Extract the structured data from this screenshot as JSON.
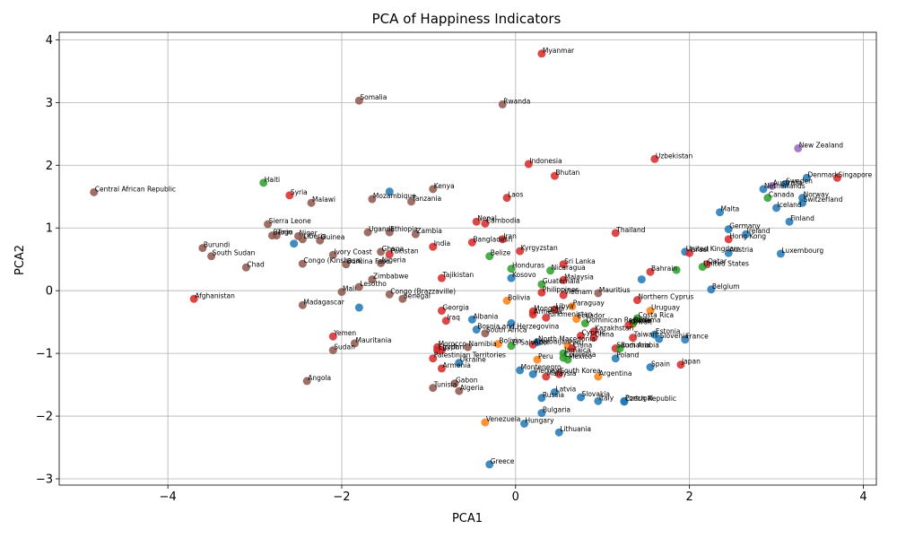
{
  "chart_data": {
    "type": "scatter",
    "title": "PCA of Happiness Indicators",
    "xlabel": "PCA1",
    "ylabel": "PCA2",
    "xlim": [
      -5.25,
      4.15
    ],
    "ylim": [
      -3.1,
      4.12
    ],
    "xticks": [
      -4,
      -2,
      0,
      2,
      4
    ],
    "yticks": [
      -3,
      -2,
      -1,
      0,
      1,
      2,
      3,
      4
    ],
    "grid": true,
    "colors": {
      "blue": "#1f77b4",
      "orange": "#ff7f0e",
      "green": "#2ca02c",
      "red": "#d62728",
      "purple": "#9467bd",
      "brown": "#8c564b"
    },
    "points": [
      {
        "x": 0.3,
        "y": 3.78,
        "label": "Myanmar",
        "c": "red"
      },
      {
        "x": -1.8,
        "y": 3.03,
        "label": "Somalia",
        "c": "brown"
      },
      {
        "x": -0.15,
        "y": 2.97,
        "label": "Rwanda",
        "c": "brown"
      },
      {
        "x": 3.25,
        "y": 2.27,
        "label": "New Zealand",
        "c": "purple"
      },
      {
        "x": 1.6,
        "y": 2.1,
        "label": "Uzbekistan",
        "c": "red"
      },
      {
        "x": 0.15,
        "y": 2.02,
        "label": "Indonesia",
        "c": "red"
      },
      {
        "x": 0.45,
        "y": 1.83,
        "label": "Bhutan",
        "c": "red"
      },
      {
        "x": 3.7,
        "y": 1.8,
        "label": "Singapore",
        "c": "red"
      },
      {
        "x": 3.35,
        "y": 1.8,
        "label": "Denmark",
        "c": "blue"
      },
      {
        "x": 3.1,
        "y": 1.7,
        "label": "Sweden",
        "c": "blue"
      },
      {
        "x": 2.95,
        "y": 1.67,
        "label": "Australia",
        "c": "purple"
      },
      {
        "x": 2.85,
        "y": 1.62,
        "label": "Netherlands",
        "c": "blue"
      },
      {
        "x": 2.9,
        "y": 1.48,
        "label": "Canada",
        "c": "green"
      },
      {
        "x": 3.3,
        "y": 1.48,
        "label": "Norway",
        "c": "blue"
      },
      {
        "x": 3.3,
        "y": 1.4,
        "label": "Switzerland",
        "c": "blue"
      },
      {
        "x": 3.0,
        "y": 1.32,
        "label": "Iceland",
        "c": "blue"
      },
      {
        "x": 3.15,
        "y": 1.1,
        "label": "Finland",
        "c": "blue"
      },
      {
        "x": 2.35,
        "y": 1.25,
        "label": "Malta",
        "c": "blue"
      },
      {
        "x": 2.45,
        "y": 0.98,
        "label": "Germany",
        "c": "blue"
      },
      {
        "x": 2.65,
        "y": 0.9,
        "label": "Ireland",
        "c": "blue"
      },
      {
        "x": 2.45,
        "y": 0.82,
        "label": "Hong Kong",
        "c": "red"
      },
      {
        "x": 1.95,
        "y": 0.62,
        "label": "United Kingdom",
        "c": "blue"
      },
      {
        "x": 2.0,
        "y": 0.6,
        "label": "Israel",
        "c": "red"
      },
      {
        "x": 2.45,
        "y": 0.6,
        "label": "Austria",
        "c": "blue"
      },
      {
        "x": 3.05,
        "y": 0.59,
        "label": "Luxembourg",
        "c": "blue"
      },
      {
        "x": 2.2,
        "y": 0.42,
        "label": "Qatar",
        "c": "red"
      },
      {
        "x": 2.15,
        "y": 0.38,
        "label": "United States",
        "c": "green"
      },
      {
        "x": 1.85,
        "y": 0.33,
        "label": "",
        "c": "green"
      },
      {
        "x": 1.55,
        "y": 0.3,
        "label": "Bahrain",
        "c": "red"
      },
      {
        "x": 2.25,
        "y": 0.02,
        "label": "Belgium",
        "c": "blue"
      },
      {
        "x": 1.45,
        "y": 0.18,
        "label": "",
        "c": "blue"
      },
      {
        "x": -4.85,
        "y": 1.57,
        "label": "Central African Republic",
        "c": "brown"
      },
      {
        "x": -2.9,
        "y": 1.72,
        "label": "Haiti",
        "c": "green"
      },
      {
        "x": -2.6,
        "y": 1.52,
        "label": "Syria",
        "c": "red"
      },
      {
        "x": -2.35,
        "y": 1.4,
        "label": "Malawi",
        "c": "brown"
      },
      {
        "x": -1.65,
        "y": 1.46,
        "label": "Mozambique",
        "c": "brown"
      },
      {
        "x": -1.45,
        "y": 1.58,
        "label": "",
        "c": "blue"
      },
      {
        "x": -1.2,
        "y": 1.42,
        "label": "Tanzania",
        "c": "brown"
      },
      {
        "x": -0.95,
        "y": 1.62,
        "label": "Kenya",
        "c": "brown"
      },
      {
        "x": -0.1,
        "y": 1.48,
        "label": "Laos",
        "c": "red"
      },
      {
        "x": -0.45,
        "y": 1.1,
        "label": "Nepal",
        "c": "red"
      },
      {
        "x": -0.35,
        "y": 1.07,
        "label": "Cambodia",
        "c": "red"
      },
      {
        "x": 1.15,
        "y": 0.92,
        "label": "Thailand",
        "c": "red"
      },
      {
        "x": -2.85,
        "y": 1.06,
        "label": "Sierra Leone",
        "c": "brown"
      },
      {
        "x": -2.8,
        "y": 0.88,
        "label": "Benin",
        "c": "brown"
      },
      {
        "x": -2.75,
        "y": 0.88,
        "label": "Togo",
        "c": "brown"
      },
      {
        "x": -2.5,
        "y": 0.87,
        "label": "Niger",
        "c": "brown"
      },
      {
        "x": -2.45,
        "y": 0.82,
        "label": "Liberia",
        "c": "brown"
      },
      {
        "x": -2.25,
        "y": 0.8,
        "label": "Guinea",
        "c": "brown"
      },
      {
        "x": -2.55,
        "y": 0.75,
        "label": "",
        "c": "blue"
      },
      {
        "x": -1.7,
        "y": 0.93,
        "label": "Uganda",
        "c": "brown"
      },
      {
        "x": -1.45,
        "y": 0.93,
        "label": "Ethiopia",
        "c": "brown"
      },
      {
        "x": -1.15,
        "y": 0.9,
        "label": "Zambia",
        "c": "brown"
      },
      {
        "x": -0.5,
        "y": 0.77,
        "label": "Bangladesh",
        "c": "red"
      },
      {
        "x": -0.15,
        "y": 0.82,
        "label": "Iran",
        "c": "red"
      },
      {
        "x": 0.05,
        "y": 0.63,
        "label": "Kyrgyzstan",
        "c": "red"
      },
      {
        "x": -0.95,
        "y": 0.7,
        "label": "India",
        "c": "red"
      },
      {
        "x": -3.6,
        "y": 0.68,
        "label": "Burundi",
        "c": "brown"
      },
      {
        "x": -3.5,
        "y": 0.55,
        "label": "South Sudan",
        "c": "brown"
      },
      {
        "x": -2.1,
        "y": 0.57,
        "label": "Ivory Coast",
        "c": "brown"
      },
      {
        "x": -1.55,
        "y": 0.62,
        "label": "Ghana",
        "c": "brown"
      },
      {
        "x": -1.45,
        "y": 0.58,
        "label": "Pakistan",
        "c": "red"
      },
      {
        "x": -2.45,
        "y": 0.43,
        "label": "Congo (Kinshasa)",
        "c": "brown"
      },
      {
        "x": -1.95,
        "y": 0.42,
        "label": "Burkina Faso",
        "c": "brown"
      },
      {
        "x": -1.55,
        "y": 0.44,
        "label": "Nigeria",
        "c": "brown"
      },
      {
        "x": -0.3,
        "y": 0.55,
        "label": "Belize",
        "c": "green"
      },
      {
        "x": -3.1,
        "y": 0.37,
        "label": "Chad",
        "c": "brown"
      },
      {
        "x": -0.05,
        "y": 0.35,
        "label": "Honduras",
        "c": "green"
      },
      {
        "x": 0.4,
        "y": 0.32,
        "label": "Nicaragua",
        "c": "green"
      },
      {
        "x": 0.55,
        "y": 0.42,
        "label": "Sri Lanka",
        "c": "red"
      },
      {
        "x": -0.85,
        "y": 0.2,
        "label": "Tajikistan",
        "c": "red"
      },
      {
        "x": -0.05,
        "y": 0.2,
        "label": "Kosovo",
        "c": "blue"
      },
      {
        "x": 0.55,
        "y": 0.17,
        "label": "Malaysia",
        "c": "red"
      },
      {
        "x": 0.3,
        "y": 0.1,
        "label": "Guatemala",
        "c": "green"
      },
      {
        "x": -1.65,
        "y": 0.18,
        "label": "Zimbabwe",
        "c": "brown"
      },
      {
        "x": -1.8,
        "y": 0.06,
        "label": "Lesotho",
        "c": "brown"
      },
      {
        "x": -2.0,
        "y": -0.02,
        "label": "Mali",
        "c": "brown"
      },
      {
        "x": -1.45,
        "y": -0.06,
        "label": "Congo (Brazzaville)",
        "c": "brown"
      },
      {
        "x": -1.3,
        "y": -0.13,
        "label": "Senegal",
        "c": "brown"
      },
      {
        "x": 0.3,
        "y": -0.03,
        "label": "Philippines",
        "c": "red"
      },
      {
        "x": 0.55,
        "y": -0.07,
        "label": "Vietnam",
        "c": "red"
      },
      {
        "x": 0.95,
        "y": -0.04,
        "label": "Mauritius",
        "c": "brown"
      },
      {
        "x": 1.4,
        "y": -0.15,
        "label": "Northern Cyprus",
        "c": "red"
      },
      {
        "x": -3.7,
        "y": -0.13,
        "label": "Afghanistan",
        "c": "red"
      },
      {
        "x": -2.45,
        "y": -0.23,
        "label": "Madagascar",
        "c": "brown"
      },
      {
        "x": -1.8,
        "y": -0.27,
        "label": "",
        "c": "blue"
      },
      {
        "x": -0.1,
        "y": -0.16,
        "label": "Bolivia",
        "c": "orange"
      },
      {
        "x": 0.65,
        "y": -0.25,
        "label": "Paraguay",
        "c": "orange"
      },
      {
        "x": 0.45,
        "y": -0.3,
        "label": "Libya",
        "c": "red"
      },
      {
        "x": -0.85,
        "y": -0.32,
        "label": "Georgia",
        "c": "red"
      },
      {
        "x": 0.2,
        "y": -0.33,
        "label": "Mongolia",
        "c": "red"
      },
      {
        "x": 0.2,
        "y": -0.38,
        "label": "Armenia",
        "c": "red"
      },
      {
        "x": 0.35,
        "y": -0.43,
        "label": "Turkmenistan",
        "c": "red"
      },
      {
        "x": 0.7,
        "y": -0.45,
        "label": "Ecuador",
        "c": "orange"
      },
      {
        "x": 1.55,
        "y": -0.32,
        "label": "Uruguay",
        "c": "orange"
      },
      {
        "x": 1.4,
        "y": -0.44,
        "label": "Costa Rica",
        "c": "green"
      },
      {
        "x": 1.35,
        "y": -0.53,
        "label": "Chile",
        "c": "orange"
      },
      {
        "x": -0.8,
        "y": -0.48,
        "label": "Iraq",
        "c": "red"
      },
      {
        "x": -0.5,
        "y": -0.46,
        "label": "Albania",
        "c": "blue"
      },
      {
        "x": 0.8,
        "y": -0.52,
        "label": "Dominican Republic",
        "c": "green"
      },
      {
        "x": 1.35,
        "y": -0.52,
        "label": "Panama",
        "c": "green"
      },
      {
        "x": 1.3,
        "y": -0.55,
        "label": "Kuwait",
        "c": "red"
      },
      {
        "x": -0.45,
        "y": -0.62,
        "label": "Bosnia and Herzegovina",
        "c": "blue"
      },
      {
        "x": -0.05,
        "y": -0.52,
        "label": "",
        "c": "blue"
      },
      {
        "x": -0.35,
        "y": -0.68,
        "label": "South Africa",
        "c": "brown"
      },
      {
        "x": 0.9,
        "y": -0.65,
        "label": "Kazakhstan",
        "c": "red"
      },
      {
        "x": 0.75,
        "y": -0.72,
        "label": "Cyprus",
        "c": "red"
      },
      {
        "x": 0.9,
        "y": -0.75,
        "label": "China",
        "c": "red"
      },
      {
        "x": 1.6,
        "y": -0.7,
        "label": "Estonia",
        "c": "blue"
      },
      {
        "x": 1.35,
        "y": -0.75,
        "label": "Taiwan",
        "c": "red"
      },
      {
        "x": 1.65,
        "y": -0.77,
        "label": "Slovenia",
        "c": "blue"
      },
      {
        "x": 1.95,
        "y": -0.78,
        "label": "France",
        "c": "blue"
      },
      {
        "x": -2.1,
        "y": -0.73,
        "label": "Yemen",
        "c": "red"
      },
      {
        "x": -1.85,
        "y": -0.84,
        "label": "Mauritania",
        "c": "brown"
      },
      {
        "x": -2.1,
        "y": -0.95,
        "label": "Sudan",
        "c": "brown"
      },
      {
        "x": -0.9,
        "y": -0.9,
        "label": "Morocco",
        "c": "red"
      },
      {
        "x": -0.85,
        "y": -0.95,
        "label": "Jordan",
        "c": "red"
      },
      {
        "x": -0.9,
        "y": -0.95,
        "label": "Egypt",
        "c": "red"
      },
      {
        "x": -0.55,
        "y": -0.9,
        "label": "Namibia",
        "c": "brown"
      },
      {
        "x": -0.2,
        "y": -0.85,
        "label": "Bolivia",
        "c": "orange"
      },
      {
        "x": -0.05,
        "y": -0.88,
        "label": "El Salvador",
        "c": "green"
      },
      {
        "x": 0.2,
        "y": -0.86,
        "label": "Azerbaijan",
        "c": "red"
      },
      {
        "x": 0.25,
        "y": -0.82,
        "label": "North Macedonia",
        "c": "blue"
      },
      {
        "x": 0.6,
        "y": -0.88,
        "label": "Peru",
        "c": "orange"
      },
      {
        "x": 0.65,
        "y": -0.92,
        "label": "China",
        "c": "red"
      },
      {
        "x": 1.15,
        "y": -0.92,
        "label": "Saudi Arabia",
        "c": "red"
      },
      {
        "x": 1.2,
        "y": -0.92,
        "label": "Romania",
        "c": "green"
      },
      {
        "x": -0.95,
        "y": -1.08,
        "label": "Palestinian Territories",
        "c": "red"
      },
      {
        "x": 0.55,
        "y": -1.0,
        "label": "Jamaica",
        "c": "green"
      },
      {
        "x": 0.55,
        "y": -1.07,
        "label": "Colombia",
        "c": "green"
      },
      {
        "x": 0.6,
        "y": -1.1,
        "label": "Mexico",
        "c": "green"
      },
      {
        "x": 1.15,
        "y": -1.08,
        "label": "Poland",
        "c": "blue"
      },
      {
        "x": 0.25,
        "y": -1.1,
        "label": "Peru",
        "c": "orange"
      },
      {
        "x": -0.65,
        "y": -1.15,
        "label": "Ukraine",
        "c": "blue"
      },
      {
        "x": -0.85,
        "y": -1.24,
        "label": "Armenia",
        "c": "red"
      },
      {
        "x": 0.05,
        "y": -1.27,
        "label": "Montenegro",
        "c": "blue"
      },
      {
        "x": 0.2,
        "y": -1.33,
        "label": "Vietnam",
        "c": "blue"
      },
      {
        "x": 0.35,
        "y": -1.37,
        "label": "Malaysia",
        "c": "red"
      },
      {
        "x": 0.5,
        "y": -1.33,
        "label": "South Korea",
        "c": "red"
      },
      {
        "x": 0.95,
        "y": -1.37,
        "label": "Argentina",
        "c": "orange"
      },
      {
        "x": 1.55,
        "y": -1.22,
        "label": "Spain",
        "c": "blue"
      },
      {
        "x": 1.9,
        "y": -1.18,
        "label": "Japan",
        "c": "red"
      },
      {
        "x": -2.4,
        "y": -1.44,
        "label": "Angola",
        "c": "brown"
      },
      {
        "x": -0.95,
        "y": -1.55,
        "label": "Tunisia",
        "c": "brown"
      },
      {
        "x": -0.7,
        "y": -1.48,
        "label": "Gabon",
        "c": "brown"
      },
      {
        "x": -0.65,
        "y": -1.6,
        "label": "Algeria",
        "c": "brown"
      },
      {
        "x": 0.45,
        "y": -1.62,
        "label": "Latvia",
        "c": "blue"
      },
      {
        "x": 0.3,
        "y": -1.71,
        "label": "Russia",
        "c": "blue"
      },
      {
        "x": 0.75,
        "y": -1.7,
        "label": "Slovakia",
        "c": "blue"
      },
      {
        "x": 0.95,
        "y": -1.76,
        "label": "Italy",
        "c": "blue"
      },
      {
        "x": 1.25,
        "y": -1.76,
        "label": "Portugal",
        "c": "blue"
      },
      {
        "x": 1.25,
        "y": -1.77,
        "label": "Czech Republic",
        "c": "blue"
      },
      {
        "x": 0.3,
        "y": -1.95,
        "label": "Bulgaria",
        "c": "blue"
      },
      {
        "x": -0.35,
        "y": -2.1,
        "label": "Venezuela",
        "c": "orange"
      },
      {
        "x": 0.1,
        "y": -2.12,
        "label": "Hungary",
        "c": "blue"
      },
      {
        "x": 0.5,
        "y": -2.26,
        "label": "Lithuania",
        "c": "blue"
      },
      {
        "x": -0.3,
        "y": -2.77,
        "label": "Greece",
        "c": "blue"
      }
    ]
  }
}
